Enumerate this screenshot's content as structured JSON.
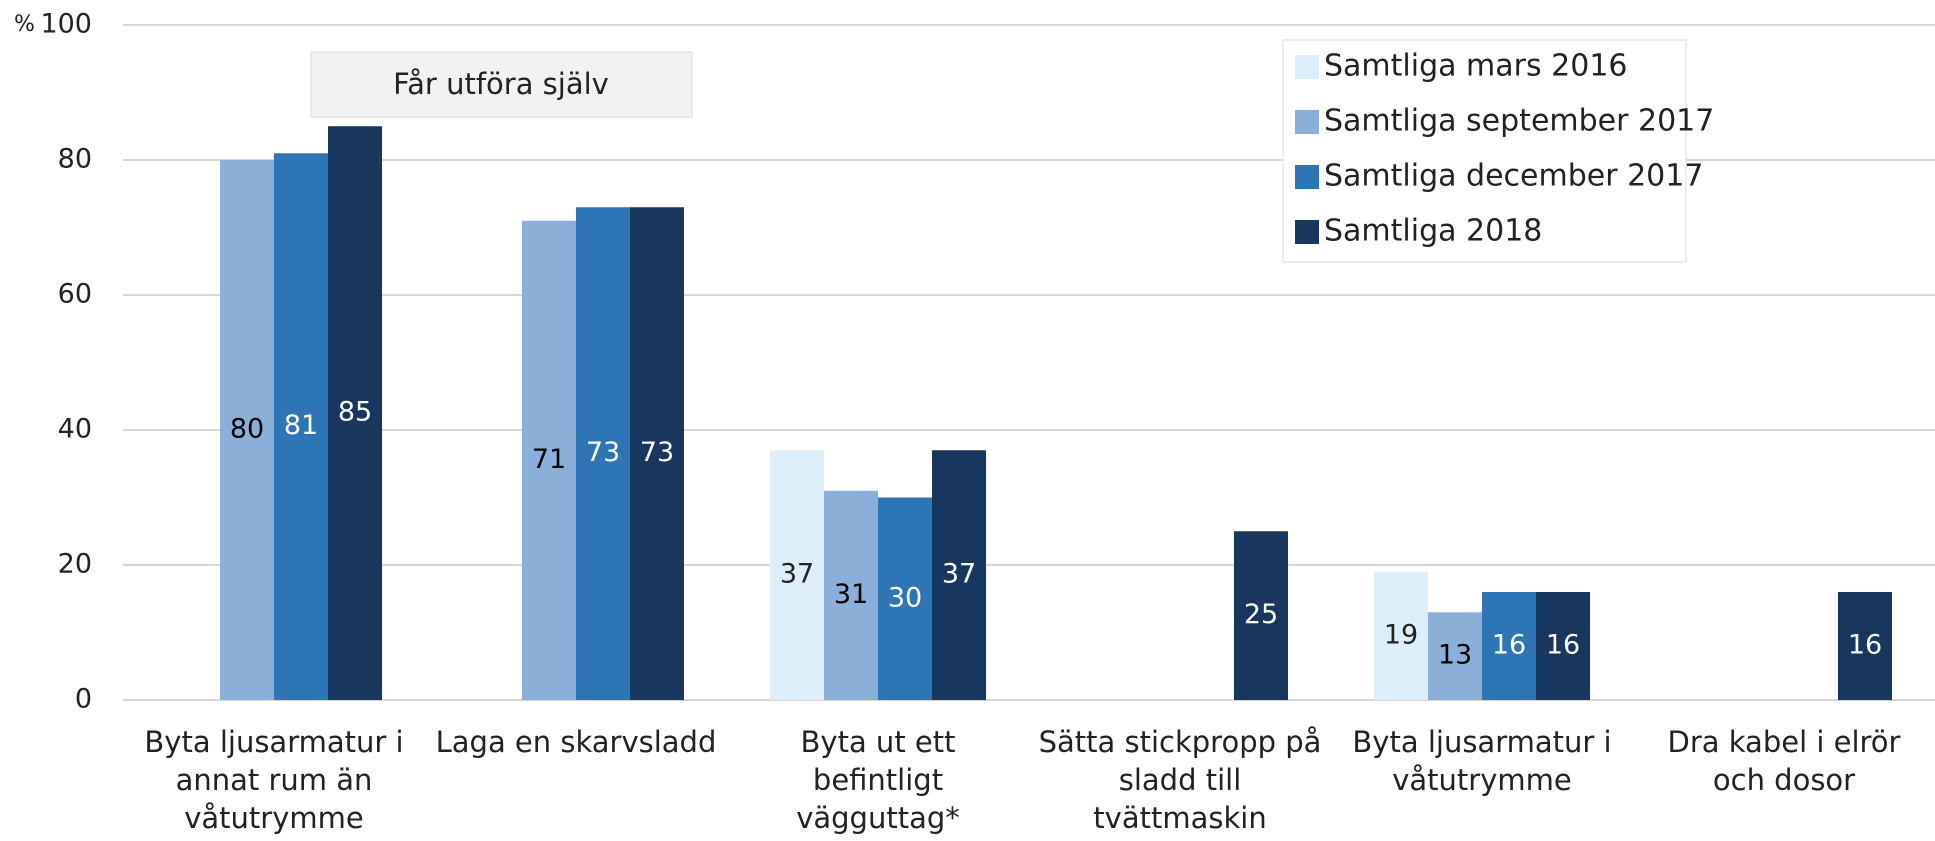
{
  "chart_data": {
    "type": "bar",
    "y_label": "%",
    "annotation": "Får utföra själv",
    "categories": [
      "Byta ljusarmatur i annat rum än våtutrymme",
      "Laga en skarvsladd",
      "Byta ut ett befintligt vägguttag*",
      "Sätta stickpropp på sladd till tvättmaskin",
      "Byta ljusarmatur i våtutrymme",
      "Dra kabel i elrör och dosor"
    ],
    "series": [
      {
        "name": "Samtliga mars 2016",
        "color": "#ddeefb",
        "label_color": "#222222",
        "values": [
          null,
          null,
          37,
          null,
          19,
          null
        ]
      },
      {
        "name": "Samtliga september 2017",
        "color": "#8aafd9",
        "label_color": "#000000",
        "values": [
          80,
          71,
          31,
          null,
          13,
          null
        ]
      },
      {
        "name": "Samtliga december 2017",
        "color": "#2e75b6",
        "label_color": "#ffffff",
        "values": [
          81,
          73,
          30,
          null,
          16,
          null
        ]
      },
      {
        "name": "Samtliga 2018",
        "color": "#17375e",
        "label_color": "#ffffff",
        "values": [
          85,
          73,
          37,
          25,
          16,
          16
        ]
      }
    ],
    "ylim": [
      0,
      100
    ],
    "yticks": [
      0,
      20,
      40,
      60,
      80,
      100
    ],
    "grid": true,
    "legend": "top-right"
  }
}
